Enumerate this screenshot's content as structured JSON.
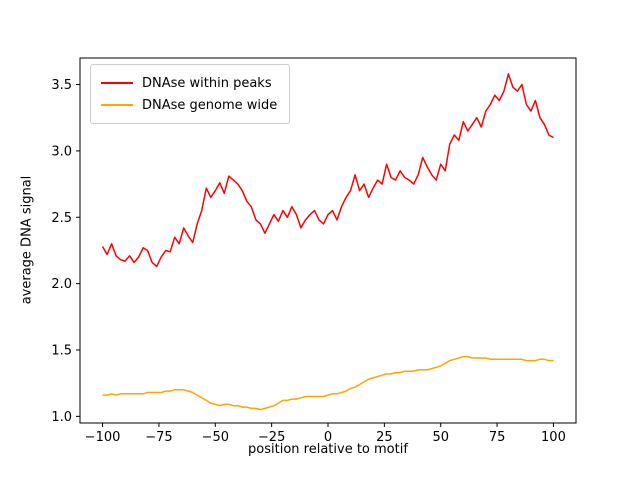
{
  "figure": {
    "background": "#ffffff"
  },
  "chart_data": {
    "type": "line",
    "title": "",
    "xlabel": "position relative to motif",
    "ylabel": "average DNA signal",
    "xlim": [
      -110,
      110
    ],
    "ylim": [
      0.95,
      3.7
    ],
    "grid": false,
    "legend_position": "upper left",
    "frame_color": "#000000",
    "xtick_values": [
      -100,
      -75,
      -50,
      -25,
      0,
      25,
      50,
      75,
      100
    ],
    "xtick_labels": [
      "−100",
      "−75",
      "−50",
      "−25",
      "0",
      "25",
      "50",
      "75",
      "100"
    ],
    "ytick_values": [
      1.0,
      1.5,
      2.0,
      2.5,
      3.0,
      3.5
    ],
    "ytick_labels": [
      "1.0",
      "1.5",
      "2.0",
      "2.5",
      "3.0",
      "3.5"
    ],
    "x": [
      -100,
      -98,
      -96,
      -94,
      -92,
      -90,
      -88,
      -86,
      -84,
      -82,
      -80,
      -78,
      -76,
      -74,
      -72,
      -70,
      -68,
      -66,
      -64,
      -62,
      -60,
      -58,
      -56,
      -54,
      -52,
      -50,
      -48,
      -46,
      -44,
      -42,
      -40,
      -38,
      -36,
      -34,
      -32,
      -30,
      -28,
      -26,
      -24,
      -22,
      -20,
      -18,
      -16,
      -14,
      -12,
      -10,
      -8,
      -6,
      -4,
      -2,
      0,
      2,
      4,
      6,
      8,
      10,
      12,
      14,
      16,
      18,
      20,
      22,
      24,
      26,
      28,
      30,
      32,
      34,
      36,
      38,
      40,
      42,
      44,
      46,
      48,
      50,
      52,
      54,
      56,
      58,
      60,
      62,
      64,
      66,
      68,
      70,
      72,
      74,
      76,
      78,
      80,
      82,
      84,
      86,
      88,
      90,
      92,
      94,
      96,
      98,
      100
    ],
    "series": [
      {
        "name": "DNAse within peaks",
        "color": "#ff0000",
        "values": [
          2.28,
          2.22,
          2.3,
          2.21,
          2.18,
          2.17,
          2.21,
          2.16,
          2.2,
          2.27,
          2.25,
          2.16,
          2.13,
          2.2,
          2.25,
          2.24,
          2.35,
          2.3,
          2.42,
          2.36,
          2.31,
          2.45,
          2.55,
          2.72,
          2.65,
          2.7,
          2.76,
          2.68,
          2.81,
          2.78,
          2.75,
          2.7,
          2.62,
          2.58,
          2.48,
          2.45,
          2.38,
          2.45,
          2.52,
          2.47,
          2.55,
          2.5,
          2.58,
          2.52,
          2.42,
          2.48,
          2.52,
          2.55,
          2.48,
          2.45,
          2.52,
          2.55,
          2.48,
          2.58,
          2.65,
          2.7,
          2.82,
          2.7,
          2.75,
          2.65,
          2.72,
          2.78,
          2.75,
          2.9,
          2.8,
          2.78,
          2.85,
          2.8,
          2.78,
          2.75,
          2.82,
          2.95,
          2.88,
          2.82,
          2.78,
          2.9,
          2.85,
          3.05,
          3.12,
          3.08,
          3.22,
          3.15,
          3.2,
          3.25,
          3.18,
          3.3,
          3.35,
          3.42,
          3.38,
          3.45,
          3.58,
          3.48,
          3.45,
          3.5,
          3.35,
          3.3,
          3.38,
          3.25,
          3.2,
          3.12,
          3.1
        ]
      },
      {
        "name": "DNAse genome wide",
        "color": "#ffa500",
        "values": [
          1.16,
          1.16,
          1.17,
          1.16,
          1.17,
          1.17,
          1.17,
          1.17,
          1.17,
          1.17,
          1.18,
          1.18,
          1.18,
          1.18,
          1.19,
          1.19,
          1.2,
          1.2,
          1.2,
          1.19,
          1.18,
          1.16,
          1.14,
          1.12,
          1.1,
          1.09,
          1.08,
          1.09,
          1.09,
          1.08,
          1.08,
          1.07,
          1.07,
          1.06,
          1.06,
          1.05,
          1.06,
          1.07,
          1.08,
          1.1,
          1.12,
          1.12,
          1.13,
          1.13,
          1.14,
          1.15,
          1.15,
          1.15,
          1.15,
          1.15,
          1.16,
          1.17,
          1.17,
          1.18,
          1.19,
          1.21,
          1.22,
          1.24,
          1.26,
          1.28,
          1.29,
          1.3,
          1.31,
          1.32,
          1.32,
          1.33,
          1.33,
          1.34,
          1.34,
          1.34,
          1.35,
          1.35,
          1.35,
          1.36,
          1.37,
          1.38,
          1.4,
          1.42,
          1.43,
          1.44,
          1.45,
          1.45,
          1.44,
          1.44,
          1.44,
          1.44,
          1.43,
          1.43,
          1.43,
          1.43,
          1.43,
          1.43,
          1.43,
          1.43,
          1.42,
          1.42,
          1.42,
          1.43,
          1.43,
          1.42,
          1.42
        ]
      }
    ]
  }
}
